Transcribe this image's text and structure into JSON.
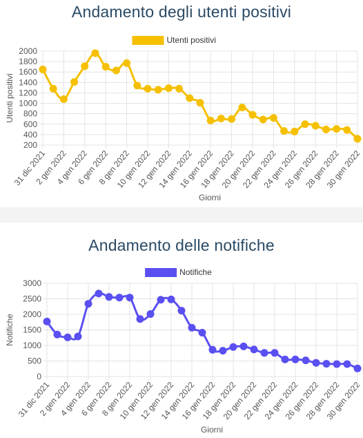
{
  "chart_data": [
    {
      "type": "line",
      "title": "Andamento degli utenti positivi",
      "xlabel": "Giorni",
      "ylabel": "Utenti positivi",
      "ylim": [
        200,
        2000
      ],
      "yticks": [
        200,
        400,
        600,
        800,
        1000,
        1200,
        1400,
        1600,
        1800,
        2000
      ],
      "xtick_labels": [
        "31 dic 2021",
        "2 gen 2022",
        "4 gen 2022",
        "6 gen 2022",
        "8 gen 2022",
        "10 gen 2022",
        "12 gen 2022",
        "14 gen 2022",
        "16 gen 2022",
        "18 gen 2022",
        "20 gen 2022",
        "22 gen 2022",
        "24 gen 2022",
        "26 gen 2022",
        "28 gen 2022",
        "30 gen 2022"
      ],
      "color": "#f5c000",
      "legend": "top",
      "grid": true,
      "series": [
        {
          "name": "Utenti positivi",
          "values": [
            1650,
            1280,
            1080,
            1410,
            1710,
            1960,
            1700,
            1630,
            1770,
            1340,
            1280,
            1260,
            1290,
            1280,
            1100,
            1010,
            670,
            710,
            700,
            920,
            780,
            690,
            720,
            470,
            460,
            600,
            570,
            500,
            510,
            490,
            320
          ]
        }
      ]
    },
    {
      "type": "line",
      "title": "Andamento delle notifiche",
      "xlabel": "Giorni",
      "ylabel": "Notifiche",
      "ylim": [
        0,
        3000
      ],
      "yticks": [
        0,
        500,
        1000,
        1500,
        2000,
        2500,
        3000
      ],
      "xtick_labels": [
        "31 dic 2021",
        "2 gen 2022",
        "4 gen 2022",
        "6 gen 2022",
        "8 gen 2022",
        "10 gen 2022",
        "12 gen 2022",
        "14 gen 2022",
        "16 gen 2022",
        "18 gen 2022",
        "20 gen 2022",
        "22 gen 2022",
        "24 gen 2022",
        "26 gen 2022",
        "28 gen 2022",
        "30 gen 2022"
      ],
      "color": "#5a4ff0",
      "legend": "top",
      "grid": true,
      "series": [
        {
          "name": "Notifiche",
          "values": [
            1770,
            1350,
            1260,
            1290,
            2340,
            2670,
            2560,
            2540,
            2540,
            1850,
            2010,
            2470,
            2480,
            2120,
            1570,
            1410,
            860,
            830,
            950,
            970,
            870,
            760,
            760,
            550,
            550,
            520,
            440,
            410,
            400,
            400,
            260
          ]
        }
      ]
    }
  ]
}
